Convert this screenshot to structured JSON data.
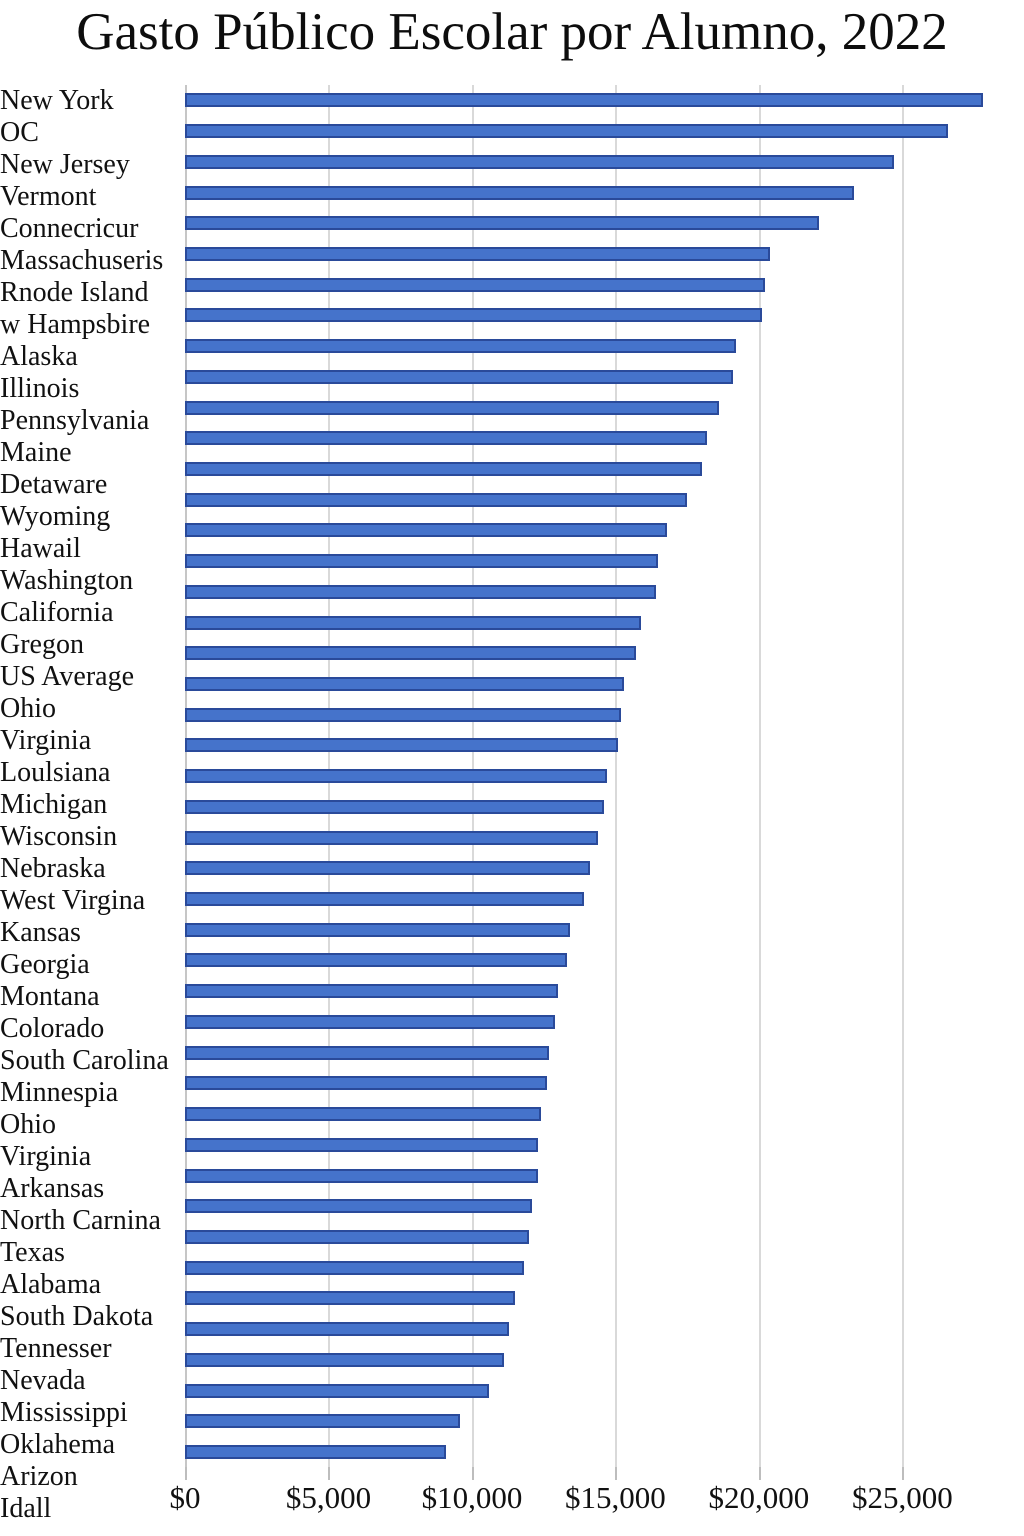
{
  "title": "Gasto Público Escolar por Alumno, 2022",
  "chart_data": {
    "type": "bar",
    "orientation": "horizontal",
    "title": "Gasto Público Escolar por Alumno, 2022",
    "xlabel": "",
    "ylabel": "",
    "grid": true,
    "legend": false,
    "xlim": [
      0,
      28750
    ],
    "x_tick_values": [
      0,
      5000,
      10000,
      15000,
      20000,
      25000
    ],
    "x_tick_labels": [
      "$0",
      "$5,000",
      "$10,000",
      "$15,000",
      "$20,000",
      "$25,000"
    ],
    "bar_color": "#4573cb",
    "bar_border_color": "#2a4a9a",
    "gridline_color": "#d9d9d9",
    "categories": [
      "New York",
      "OC",
      "New Jersey",
      "Vermont",
      "Connecricur",
      "Massachuseris",
      "Rnode Island",
      "w Hampsbire",
      "Alaska",
      "Illinois",
      "Pennsylvania",
      "Maine",
      "Detaware",
      "Wyoming",
      "Hawail",
      "Washington",
      "California",
      "Gregon",
      "US Average",
      "Ohio",
      "Virginia",
      "Loulsiana",
      "Michigan",
      "Wisconsin",
      "Nebraska",
      "West Virgina",
      "Kansas",
      "Georgia",
      "Montana",
      "Colorado",
      "South Carolina",
      "Minnespia",
      "Ohio",
      "Virginia",
      "Arkansas",
      "North Carnina",
      "Texas",
      "Alabama",
      "South Dakota",
      "Tennesser",
      "Nevada",
      "Mississippi",
      "Oklahema",
      "Arizon",
      "Idall"
    ],
    "values": [
      27800,
      26600,
      24700,
      23300,
      22100,
      20400,
      20200,
      20100,
      19200,
      19100,
      18600,
      18200,
      18000,
      17500,
      16800,
      16500,
      16400,
      15900,
      15700,
      15300,
      15200,
      15100,
      14700,
      14600,
      14400,
      14100,
      13900,
      13400,
      13300,
      13000,
      12900,
      12700,
      12600,
      12400,
      12300,
      12300,
      12100,
      12000,
      11800,
      11500,
      11300,
      11100,
      10600,
      9600,
      9100
    ]
  }
}
